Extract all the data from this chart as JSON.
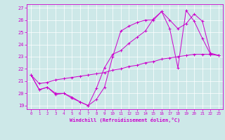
{
  "xlabel": "Windchill (Refroidissement éolien,°C)",
  "background_color": "#cde8e8",
  "line_color": "#cc00cc",
  "xlim": [
    -0.5,
    23.5
  ],
  "ylim": [
    18.7,
    27.3
  ],
  "xticks": [
    0,
    1,
    2,
    3,
    4,
    5,
    6,
    7,
    8,
    9,
    10,
    11,
    12,
    13,
    14,
    15,
    16,
    17,
    18,
    19,
    20,
    21,
    22,
    23
  ],
  "yticks": [
    19,
    20,
    21,
    22,
    23,
    24,
    25,
    26,
    27
  ],
  "line1_x": [
    0,
    1,
    2,
    3,
    4,
    5,
    6,
    7,
    8,
    9,
    10,
    11,
    12,
    13,
    14,
    15,
    16,
    17,
    18,
    19,
    20,
    21,
    22,
    23
  ],
  "line1_y": [
    21.5,
    20.3,
    20.5,
    20.0,
    20.0,
    19.7,
    19.3,
    19.0,
    19.5,
    20.5,
    23.0,
    25.1,
    25.5,
    25.8,
    26.0,
    26.0,
    26.7,
    26.0,
    25.3,
    25.7,
    26.5,
    25.9,
    23.3,
    23.1
  ],
  "line2_x": [
    0,
    1,
    2,
    3,
    4,
    5,
    6,
    7,
    8,
    9,
    10,
    11,
    12,
    13,
    14,
    15,
    16,
    17,
    18,
    19,
    20,
    21,
    22,
    23
  ],
  "line2_y": [
    21.5,
    20.3,
    20.5,
    19.9,
    20.0,
    19.6,
    19.3,
    19.0,
    20.4,
    22.1,
    23.2,
    23.5,
    24.1,
    24.6,
    25.1,
    26.1,
    26.7,
    25.3,
    22.1,
    26.8,
    25.9,
    24.5,
    23.2,
    23.1
  ],
  "line3_x": [
    0,
    1,
    2,
    3,
    4,
    5,
    6,
    7,
    8,
    9,
    10,
    11,
    12,
    13,
    14,
    15,
    16,
    17,
    18,
    19,
    20,
    21,
    22,
    23
  ],
  "line3_y": [
    21.5,
    20.8,
    20.9,
    21.1,
    21.2,
    21.3,
    21.4,
    21.5,
    21.6,
    21.7,
    21.9,
    22.0,
    22.2,
    22.3,
    22.5,
    22.6,
    22.8,
    22.9,
    23.0,
    23.1,
    23.2,
    23.2,
    23.2,
    23.1
  ]
}
